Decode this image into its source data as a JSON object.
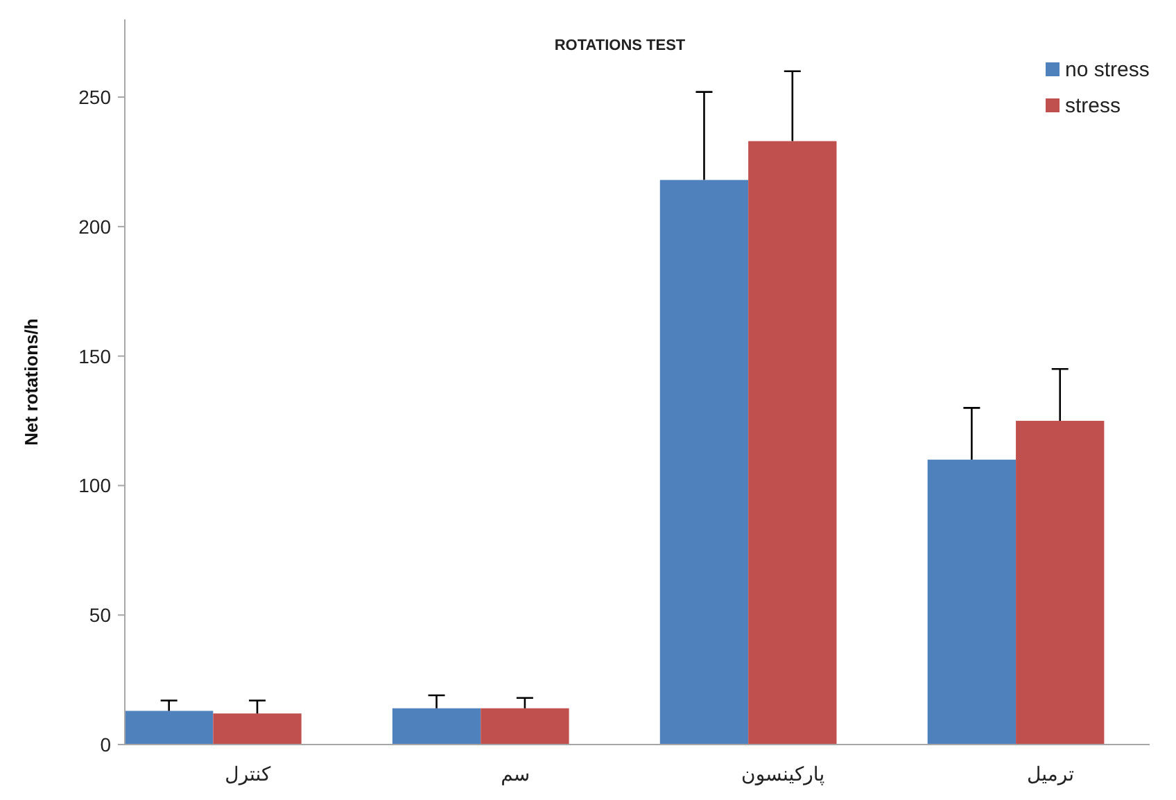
{
  "chart_data": {
    "type": "bar",
    "title": "ROTATIONS TEST",
    "ylabel": "Net rotations/h",
    "categories": [
      "کنترل",
      "سم",
      "پارکینسون",
      "ترمیل"
    ],
    "series": [
      {
        "name": "no stress",
        "color": "#4f81bd",
        "values": [
          13,
          14,
          218,
          110
        ],
        "errors": [
          [
            13,
            17
          ],
          [
            14,
            19
          ],
          [
            218,
            252
          ],
          [
            110,
            130
          ]
        ]
      },
      {
        "name": "stress",
        "color": "#c0504d",
        "values": [
          12,
          14,
          233,
          125
        ],
        "errors": [
          [
            12,
            17
          ],
          [
            14,
            18
          ],
          [
            233,
            260
          ],
          [
            125,
            145
          ]
        ]
      }
    ],
    "ylim": [
      0,
      280
    ],
    "yticks": [
      0,
      50,
      100,
      150,
      200,
      250
    ],
    "grid": false,
    "legend": "top right"
  }
}
